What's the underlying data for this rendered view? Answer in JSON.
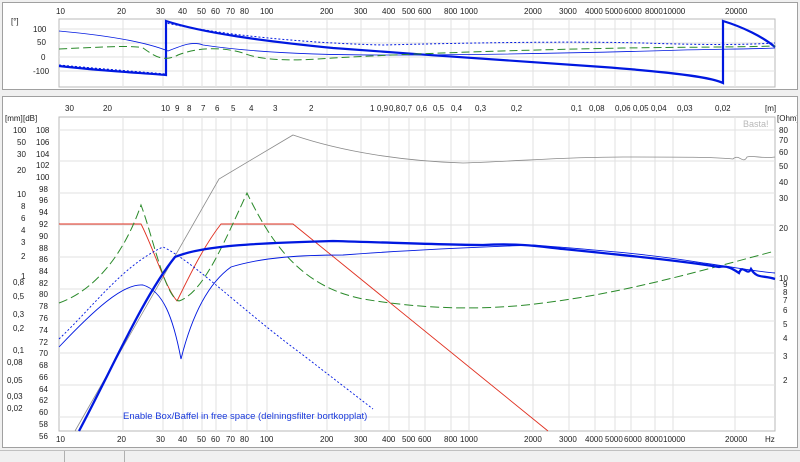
{
  "phase_panel": {
    "unit_label": "[°]",
    "freq_ticks": [
      "10",
      "20",
      "30",
      "40",
      "50",
      "60",
      "70",
      "80",
      "100",
      "200",
      "300",
      "400",
      "500",
      "600",
      "800",
      "1000",
      "2000",
      "3000",
      "4000",
      "5000",
      "6000",
      "8000",
      "10000",
      "20000"
    ],
    "y_ticks": [
      "100",
      "50",
      "0",
      "-100"
    ]
  },
  "main_panel": {
    "top_axis_unit": "[mm]",
    "top_axis_ticks": [
      "30",
      "20",
      "10",
      "9",
      "8",
      "7",
      "6",
      "5",
      "4",
      "3",
      "2",
      "1",
      "0,9",
      "0,8",
      "0,7",
      "0,6",
      "0,5",
      "0,4",
      "0,3",
      "0,2",
      "0,1",
      "0,08",
      "0,06",
      "0,05",
      "0,04",
      "0,03",
      "0,02"
    ],
    "top_axis_unit_right": "[m]",
    "db_unit": "[dB]",
    "db_ticks": [
      "108",
      "106",
      "104",
      "102",
      "100",
      "98",
      "96",
      "94",
      "92",
      "90",
      "88",
      "86",
      "84",
      "82",
      "80",
      "78",
      "76",
      "74",
      "72",
      "70",
      "68",
      "66",
      "64",
      "62",
      "60",
      "58",
      "56"
    ],
    "mm_unit": "[mm]",
    "mm_ticks": [
      "100",
      "50",
      "30",
      "20",
      "10",
      "8",
      "6",
      "4",
      "3",
      "2",
      "1",
      "0,8",
      "0,5",
      "0,3",
      "0,2",
      "0,1",
      "0,08",
      "0,05",
      "0,03",
      "0,02"
    ],
    "ohm_unit": "[Ohm]",
    "ohm_ticks": [
      "80",
      "70",
      "60",
      "50",
      "40",
      "30",
      "20",
      "10",
      "9",
      "8",
      "7",
      "6",
      "5",
      "4",
      "3",
      "2"
    ],
    "freq_ticks": [
      "10",
      "20",
      "30",
      "40",
      "50",
      "60",
      "70",
      "80",
      "100",
      "200",
      "300",
      "400",
      "500",
      "600",
      "800",
      "1000",
      "2000",
      "3000",
      "4000",
      "5000",
      "6000",
      "8000",
      "10000",
      "20000"
    ],
    "freq_unit": "Hz",
    "watermark": "Basta!",
    "annotation": "Enable Box/Baffel in free space (delningsfilter bortkopplat)"
  },
  "colors": {
    "spl": "#0018e0",
    "phase": "#0018e0",
    "excursion": "#e03020",
    "impedance": "#2a8a2a",
    "group_delay": "#8a8a8a",
    "annotation": "#1a3adc"
  }
}
